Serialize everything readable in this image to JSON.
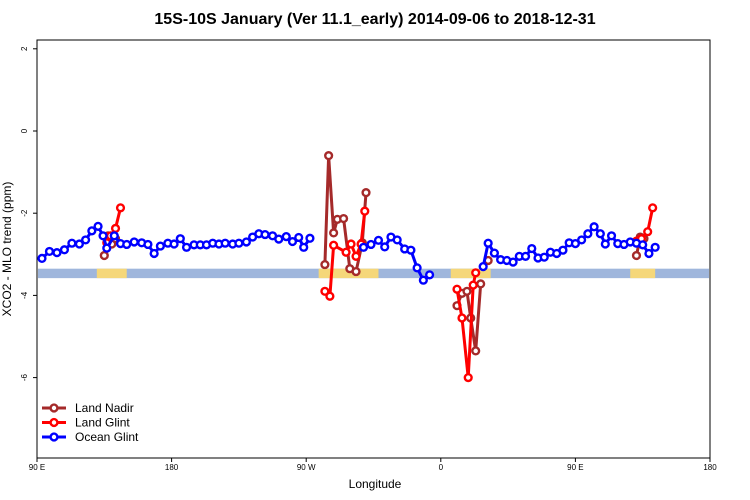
{
  "chart_data": {
    "type": "line",
    "title": "15S-10S January (Ver 11.1_early)   2014-09-06 to 2018-12-31",
    "xlabel": "Longitude",
    "ylabel": "XCO2 - MLO trend (ppm)",
    "xlim": [
      -90,
      180
    ],
    "ylim": [
      -8,
      2.2
    ],
    "grid": false,
    "legend_position": "bottom-left",
    "x_ticks": [
      {
        "value": -90,
        "label": "90 E"
      },
      {
        "value": -36,
        "label": "180"
      },
      {
        "value": 18,
        "label": "90 W"
      },
      {
        "value": 72,
        "label": "0"
      },
      {
        "value": 126,
        "label": "90 E"
      },
      {
        "value": 180,
        "label": "180"
      }
    ],
    "y_ticks": [
      {
        "value": 2,
        "label": "2"
      },
      {
        "value": 0,
        "label": "0"
      },
      {
        "value": -2,
        "label": "-2"
      },
      {
        "value": -4,
        "label": "-4"
      },
      {
        "value": -6,
        "label": "-6"
      }
    ],
    "series": [
      {
        "name": "Land Nadir",
        "color": "#a52a2a",
        "segments": [
          [
            [
              -63,
              -3.03
            ],
            [
              -61.5,
              -2.55
            ],
            [
              -60,
              -2.75
            ],
            [
              -58.5,
              -2.62
            ]
          ],
          [
            [
              25.5,
              -3.25
            ],
            [
              27,
              -0.6
            ],
            [
              29,
              -2.48
            ],
            [
              30.5,
              -2.15
            ],
            [
              33,
              -2.13
            ],
            [
              35.5,
              -3.35
            ],
            [
              38,
              -3.42
            ],
            [
              40.5,
              -2.72
            ],
            [
              42,
              -1.5
            ]
          ],
          [
            [
              78.5,
              -4.25
            ],
            [
              80.5,
              -3.95
            ],
            [
              82.5,
              -3.9
            ],
            [
              84,
              -4.55
            ],
            [
              86,
              -5.35
            ],
            [
              88,
              -3.72
            ]
          ],
          [
            [
              91,
              -3.15
            ]
          ],
          [
            [
              150.5,
              -3.03
            ],
            [
              152,
              -2.58
            ],
            [
              153.5,
              -2.62
            ]
          ]
        ]
      },
      {
        "name": "Land Glint",
        "color": "#ff0000",
        "segments": [
          [
            [
              -62,
              -2.72
            ],
            [
              -60.5,
              -2.55
            ],
            [
              -58.5,
              -2.37
            ],
            [
              -56.5,
              -1.87
            ]
          ],
          [
            [
              25.5,
              -3.9
            ],
            [
              27.5,
              -4.02
            ],
            [
              29,
              -2.78
            ],
            [
              34,
              -2.95
            ],
            [
              36,
              -2.75
            ],
            [
              38,
              -3.05
            ],
            [
              40,
              -2.75
            ],
            [
              41.5,
              -1.95
            ]
          ],
          [
            [
              78.5,
              -3.85
            ],
            [
              80.5,
              -4.55
            ],
            [
              83,
              -6.0
            ],
            [
              85,
              -3.75
            ],
            [
              86,
              -3.45
            ]
          ],
          [
            [
              150.5,
              -2.68
            ],
            [
              152.5,
              -2.62
            ],
            [
              155,
              -2.45
            ],
            [
              157,
              -1.87
            ]
          ]
        ]
      },
      {
        "name": "Ocean Glint",
        "color": "#0000ff",
        "segments": [
          [
            [
              -88,
              -3.1
            ],
            [
              -85,
              -2.93
            ],
            [
              -82,
              -2.96
            ],
            [
              -79,
              -2.89
            ],
            [
              -76,
              -2.73
            ],
            [
              -73,
              -2.75
            ],
            [
              -70.5,
              -2.65
            ],
            [
              -68,
              -2.43
            ],
            [
              -65.5,
              -2.32
            ],
            [
              -63.5,
              -2.55
            ],
            [
              -62,
              -2.85
            ],
            [
              -59,
              -2.55
            ],
            [
              -56.5,
              -2.74
            ],
            [
              -54,
              -2.76
            ],
            [
              -51,
              -2.7
            ],
            [
              -48,
              -2.72
            ],
            [
              -45.5,
              -2.76
            ],
            [
              -43,
              -2.98
            ],
            [
              -40.5,
              -2.8
            ],
            [
              -37.5,
              -2.73
            ],
            [
              -35,
              -2.75
            ],
            [
              -32.5,
              -2.62
            ],
            [
              -30,
              -2.83
            ],
            [
              -27,
              -2.77
            ],
            [
              -24.5,
              -2.77
            ],
            [
              -22,
              -2.77
            ],
            [
              -19.5,
              -2.73
            ],
            [
              -17,
              -2.75
            ],
            [
              -14.5,
              -2.73
            ],
            [
              -11.5,
              -2.75
            ],
            [
              -9,
              -2.73
            ],
            [
              -6,
              -2.7
            ],
            [
              -3.5,
              -2.58
            ],
            [
              -1,
              -2.5
            ],
            [
              1.5,
              -2.52
            ],
            [
              4.5,
              -2.55
            ],
            [
              7,
              -2.63
            ],
            [
              10,
              -2.57
            ],
            [
              12.5,
              -2.69
            ],
            [
              15,
              -2.59
            ],
            [
              17,
              -2.83
            ],
            [
              19.5,
              -2.61
            ]
          ],
          [
            [
              41,
              -2.83
            ],
            [
              44,
              -2.76
            ],
            [
              47,
              -2.66
            ],
            [
              49.5,
              -2.82
            ],
            [
              52,
              -2.58
            ],
            [
              54.5,
              -2.65
            ],
            [
              57.5,
              -2.87
            ],
            [
              60,
              -2.9
            ],
            [
              62.5,
              -3.33
            ],
            [
              65,
              -3.63
            ],
            [
              67.5,
              -3.5
            ]
          ],
          [
            [
              89,
              -3.3
            ],
            [
              91,
              -2.73
            ],
            [
              93.5,
              -2.97
            ],
            [
              96,
              -3.13
            ],
            [
              98.5,
              -3.15
            ],
            [
              101,
              -3.19
            ],
            [
              103.5,
              -3.05
            ],
            [
              106,
              -3.05
            ],
            [
              108.5,
              -2.86
            ],
            [
              111,
              -3.09
            ],
            [
              113.5,
              -3.07
            ],
            [
              116,
              -2.95
            ],
            [
              118.5,
              -2.98
            ],
            [
              121,
              -2.9
            ],
            [
              123.5,
              -2.72
            ],
            [
              126,
              -2.74
            ],
            [
              128.5,
              -2.65
            ],
            [
              131,
              -2.5
            ],
            [
              133.5,
              -2.33
            ],
            [
              136,
              -2.5
            ],
            [
              138,
              -2.75
            ],
            [
              140.5,
              -2.55
            ],
            [
              143,
              -2.74
            ],
            [
              145.5,
              -2.76
            ],
            [
              148,
              -2.7
            ],
            [
              150.5,
              -2.73
            ],
            [
              153,
              -2.77
            ],
            [
              155.5,
              -2.98
            ],
            [
              158,
              -2.83
            ]
          ]
        ]
      }
    ],
    "band": {
      "y_top": -3.35,
      "y_bottom": -3.58,
      "land_color": "#f5d77a",
      "ocean_color": "#9fb6dc"
    },
    "legend": [
      {
        "label": "Land Nadir",
        "color": "#a52a2a"
      },
      {
        "label": "Land Glint",
        "color": "#ff0000"
      },
      {
        "label": "Ocean Glint",
        "color": "#0000ff"
      }
    ]
  }
}
